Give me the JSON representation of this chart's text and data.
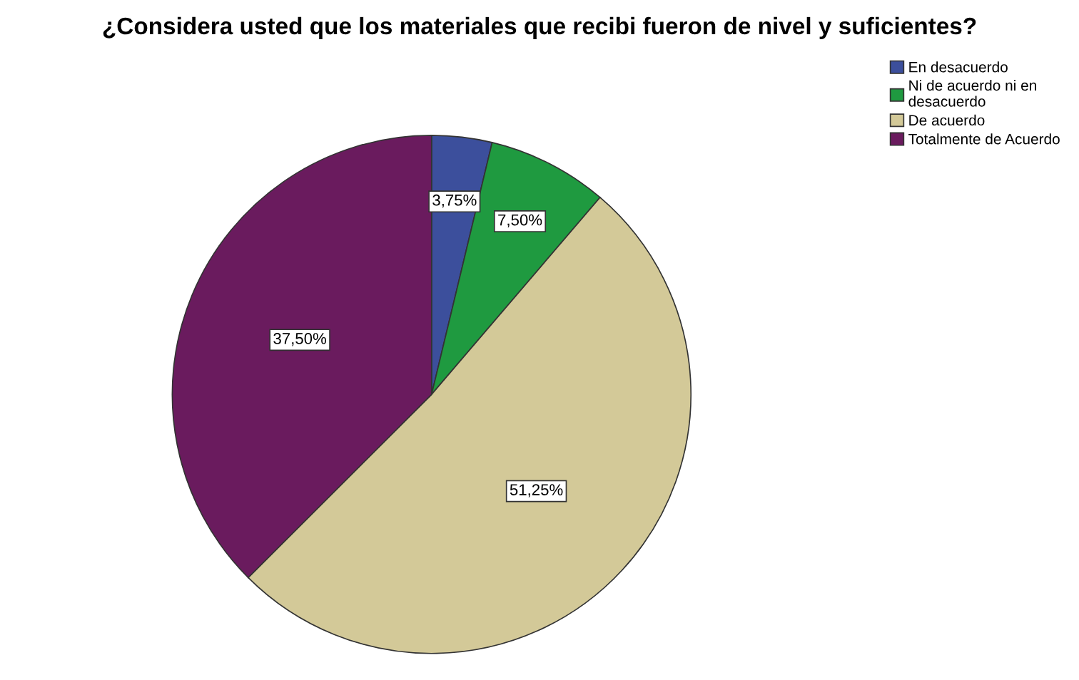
{
  "chart_data": {
    "type": "pie",
    "title": "¿Considera usted que los materiales que recibi fueron de nivel y suficientes?",
    "categories": [
      "En desacuerdo",
      "Ni de acuerdo ni en\ndesacuerdo",
      "De acuerdo",
      "Totalmente de Acuerdo"
    ],
    "values": [
      3.75,
      7.5,
      51.25,
      37.5
    ],
    "value_labels": [
      "3,75%",
      "7,50%",
      "51,25%",
      "37,50%"
    ],
    "colors": [
      "#3c4f9c",
      "#1f9a40",
      "#d3c998",
      "#6a1b5e"
    ],
    "legend": "top right"
  }
}
